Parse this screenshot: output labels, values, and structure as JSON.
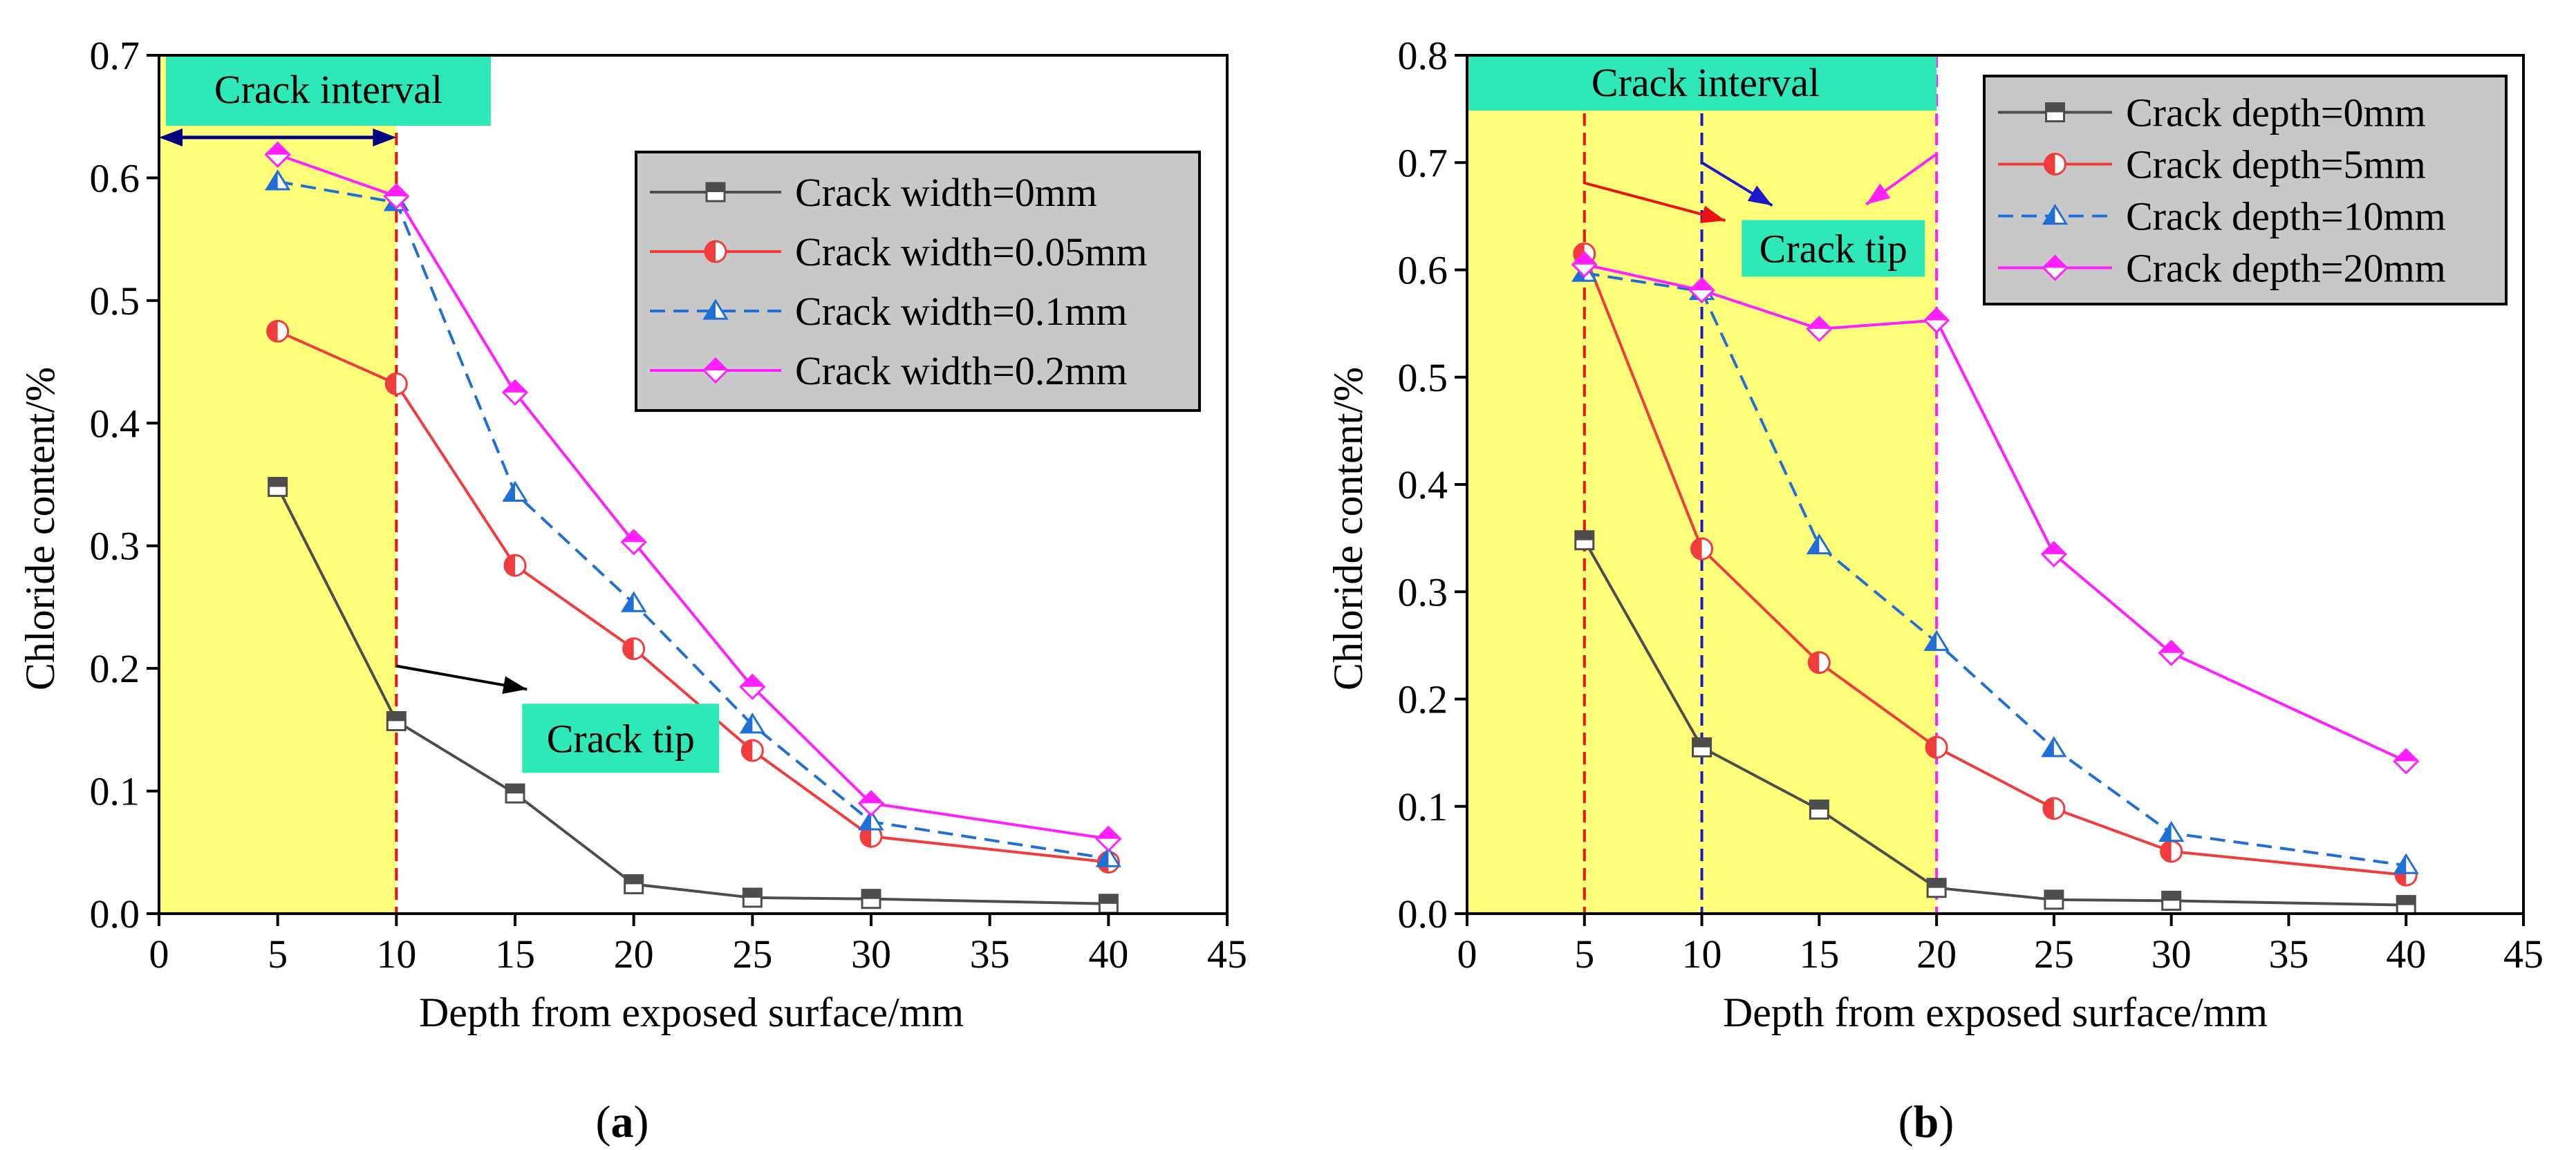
{
  "chart_data": [
    {
      "type": "line",
      "panel_label": "a",
      "xlabel": "Depth from exposed surface/mm",
      "ylabel": "Chloride content/%",
      "xlim": [
        0,
        45
      ],
      "ylim": [
        0,
        0.7
      ],
      "xticks": [
        "0",
        "5",
        "10",
        "15",
        "20",
        "25",
        "30",
        "35",
        "40",
        "45"
      ],
      "yticks": [
        "0.0",
        "0.1",
        "0.2",
        "0.3",
        "0.4",
        "0.5",
        "0.6",
        "0.7"
      ],
      "legend_position": "top-right",
      "shaded_interval": [
        0,
        10
      ],
      "series": [
        {
          "name": "Crack width=0mm",
          "color": "#4d4d4d",
          "marker": "square",
          "dashed": false,
          "x": [
            5,
            10,
            15,
            20,
            25,
            30,
            40
          ],
          "y": [
            0.348,
            0.157,
            0.098,
            0.024,
            0.013,
            0.012,
            0.008
          ]
        },
        {
          "name": "Crack width=0.05mm",
          "color": "#f03c3c",
          "marker": "circle",
          "dashed": false,
          "x": [
            5,
            10,
            15,
            20,
            25,
            30,
            40
          ],
          "y": [
            0.475,
            0.432,
            0.284,
            0.216,
            0.133,
            0.063,
            0.042
          ]
        },
        {
          "name": "Crack width=0.1mm",
          "color": "#1f6fd6",
          "marker": "triangle",
          "dashed": true,
          "x": [
            5,
            10,
            15,
            20,
            25,
            30,
            40
          ],
          "y": [
            0.597,
            0.58,
            0.343,
            0.253,
            0.154,
            0.075,
            0.045
          ]
        },
        {
          "name": "Crack width=0.2mm",
          "color": "#ff1fff",
          "marker": "diamond",
          "dashed": false,
          "x": [
            5,
            10,
            15,
            20,
            25,
            30,
            40
          ],
          "y": [
            0.619,
            0.585,
            0.425,
            0.303,
            0.185,
            0.09,
            0.061
          ]
        }
      ],
      "vlines": [
        {
          "x": 10,
          "color": "#ee1111"
        }
      ],
      "annotations": [
        {
          "text": "Crack interval",
          "x": 0,
          "y": 0.633,
          "anchor": "start",
          "kind": "interval"
        },
        {
          "text": "Crack tip",
          "x": 15.3,
          "y": 0.143,
          "anchor": "start",
          "kind": "label"
        }
      ],
      "arrows": [
        {
          "from": [
            10,
            0.202
          ],
          "to": [
            15.5,
            0.183
          ],
          "color": "#000000",
          "bent": false
        },
        {
          "from": [
            0,
            0.633
          ],
          "to": [
            10,
            0.633
          ],
          "color": "#000080",
          "double": true
        }
      ]
    },
    {
      "type": "line",
      "panel_label": "b",
      "xlabel": "Depth from exposed surface/mm",
      "ylabel": "Chloride content/%",
      "xlim": [
        0,
        45
      ],
      "ylim": [
        0,
        0.8
      ],
      "xticks": [
        "0",
        "5",
        "10",
        "15",
        "20",
        "25",
        "30",
        "35",
        "40",
        "45"
      ],
      "yticks": [
        "0.0",
        "0.1",
        "0.2",
        "0.3",
        "0.4",
        "0.5",
        "0.6",
        "0.7",
        "0.8"
      ],
      "legend_position": "top-right",
      "shaded_interval": [
        0,
        20
      ],
      "series": [
        {
          "name": "Crack depth=0mm",
          "color": "#4d4d4d",
          "marker": "square",
          "dashed": false,
          "x": [
            5,
            10,
            15,
            20,
            25,
            30,
            40
          ],
          "y": [
            0.348,
            0.155,
            0.097,
            0.024,
            0.013,
            0.012,
            0.008
          ]
        },
        {
          "name": "Crack depth=5mm",
          "color": "#f03c3c",
          "marker": "circle",
          "dashed": false,
          "x": [
            5,
            10,
            15,
            20,
            25,
            30,
            40
          ],
          "y": [
            0.615,
            0.34,
            0.234,
            0.155,
            0.098,
            0.058,
            0.036
          ]
        },
        {
          "name": "Crack depth=10mm",
          "color": "#1f6fd6",
          "marker": "triangle",
          "dashed": true,
          "x": [
            5,
            10,
            15,
            20,
            25,
            30,
            40
          ],
          "y": [
            0.597,
            0.58,
            0.343,
            0.253,
            0.154,
            0.075,
            0.045
          ]
        },
        {
          "name": "Crack depth=20mm",
          "color": "#ff1fff",
          "marker": "diamond",
          "dashed": false,
          "x": [
            5,
            10,
            15,
            20,
            25,
            30,
            40
          ],
          "y": [
            0.605,
            0.581,
            0.545,
            0.553,
            0.335,
            0.243,
            0.142
          ]
        }
      ],
      "vlines": [
        {
          "x": 5,
          "color": "#ee1111"
        },
        {
          "x": 10,
          "color": "#1a1acc"
        },
        {
          "x": 20,
          "color": "#ff22ff"
        }
      ],
      "annotations": [
        {
          "text": "Crack interval",
          "x": 0,
          "y": 0.775,
          "anchor": "start",
          "kind": "interval"
        },
        {
          "text": "Crack tip",
          "x": 11.7,
          "y": 0.62,
          "anchor": "start",
          "kind": "label"
        }
      ],
      "arrows": [
        {
          "from": [
            5,
            0.681
          ],
          "to": [
            11,
            0.646
          ],
          "color": "#ee1111",
          "bent": false
        },
        {
          "from": [
            10,
            0.708
          ],
          "to": [
            10,
            0.7
          ],
          "to2": [
            13,
            0.66
          ],
          "color": "#1a1acc",
          "bent": true
        },
        {
          "from": [
            20,
            0.708
          ],
          "to": [
            17,
            0.661
          ],
          "color": "#ff22ff",
          "bent": false
        }
      ]
    }
  ]
}
